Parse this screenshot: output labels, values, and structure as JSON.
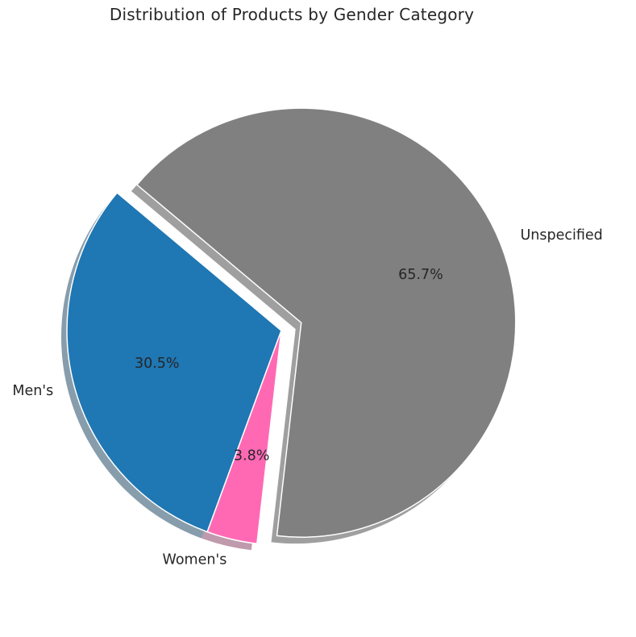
{
  "chart_data": {
    "type": "pie",
    "title": "Distribution of Products by Gender Category",
    "slices": [
      {
        "label": "Men's",
        "value": 30.5,
        "pct_label": "30.5%",
        "color": "#1f77b4",
        "exploded": false
      },
      {
        "label": "Women's",
        "value": 3.8,
        "pct_label": "3.8%",
        "color": "#ff69b4",
        "exploded": false
      },
      {
        "label": "Unspecified",
        "value": 65.7,
        "pct_label": "65.7%",
        "color": "#808080",
        "exploded": true
      }
    ],
    "shadow": true,
    "edge_color": "#ffffff"
  }
}
